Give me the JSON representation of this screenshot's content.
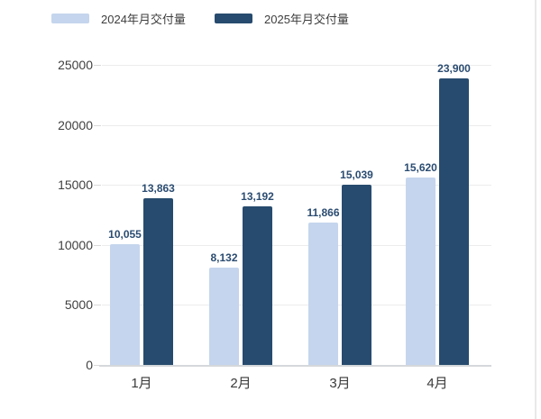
{
  "chart_data": {
    "type": "bar",
    "title": "",
    "xlabel": "",
    "ylabel": "",
    "categories": [
      "1月",
      "2月",
      "3月",
      "4月"
    ],
    "series": [
      {
        "name": "2024年月交付量",
        "color": "#c5d5ed",
        "values": [
          10055,
          8132,
          11866,
          15620
        ]
      },
      {
        "name": "2025年月交付量",
        "color": "#274b6e",
        "values": [
          13863,
          13192,
          15039,
          23900
        ]
      }
    ],
    "data_labels": [
      [
        "10,055",
        "8,132",
        "11,866",
        "15,620"
      ],
      [
        "13,863",
        "13,192",
        "15,039",
        "23,900"
      ]
    ],
    "ylim": [
      0,
      25000
    ],
    "yticks": [
      0,
      5000,
      10000,
      15000,
      20000,
      25000
    ],
    "grid": true,
    "legend_position": "top"
  },
  "ui": {
    "background_color": "#ffffff",
    "grid_color": "#ececec",
    "axis_color": "#d5d8db",
    "tick_color": "#d9d9d9",
    "value_label_color": "#2b4c71",
    "legend_text_color": "#3d3d3d",
    "scrollbar_color": "#e9e9e9"
  }
}
